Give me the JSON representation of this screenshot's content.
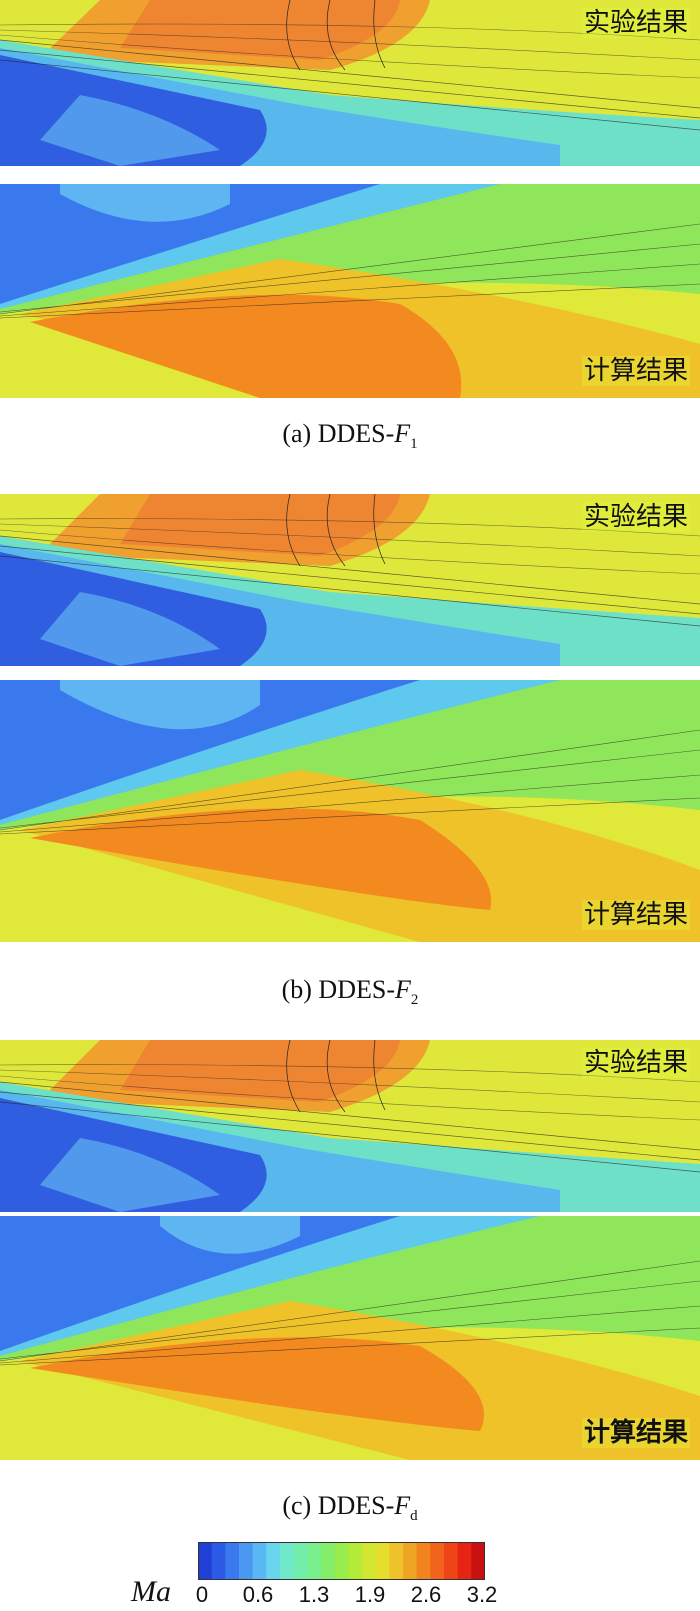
{
  "panels": [
    {
      "id": "a-exp",
      "label": "实验结果",
      "kind": "experiment"
    },
    {
      "id": "a-cmp",
      "label": "计算结果",
      "kind": "computation"
    },
    {
      "id": "b-exp",
      "label": "实验结果",
      "kind": "experiment"
    },
    {
      "id": "b-cmp",
      "label": "计算结果",
      "kind": "computation"
    },
    {
      "id": "c-exp",
      "label": "实验结果",
      "kind": "experiment"
    },
    {
      "id": "c-cmp",
      "label": "计算结果",
      "kind": "computation"
    }
  ],
  "captions": {
    "a": {
      "prefix": "(a) DDES-",
      "var": "F",
      "sub": "1"
    },
    "b": {
      "prefix": "(b) DDES-",
      "var": "F",
      "sub": "2"
    },
    "c": {
      "prefix": "(c) DDES-",
      "var": "F",
      "sub": "d"
    }
  },
  "colorbar": {
    "title": "Ma",
    "ticks": [
      "0",
      "0.6",
      "1.3",
      "1.9",
      "2.6",
      "3.2"
    ],
    "colors": [
      "#1f3fd6",
      "#2a5ae6",
      "#3a78ee",
      "#4a98f2",
      "#5ab8f4",
      "#6ad6ee",
      "#6ee8c8",
      "#72ecaa",
      "#78ee8c",
      "#84ee6c",
      "#98ec4c",
      "#b4ea38",
      "#d0e630",
      "#e6de2c",
      "#eec228",
      "#f0a424",
      "#f28420",
      "#f2641c",
      "#ee4418",
      "#e62414",
      "#c81010"
    ]
  }
}
